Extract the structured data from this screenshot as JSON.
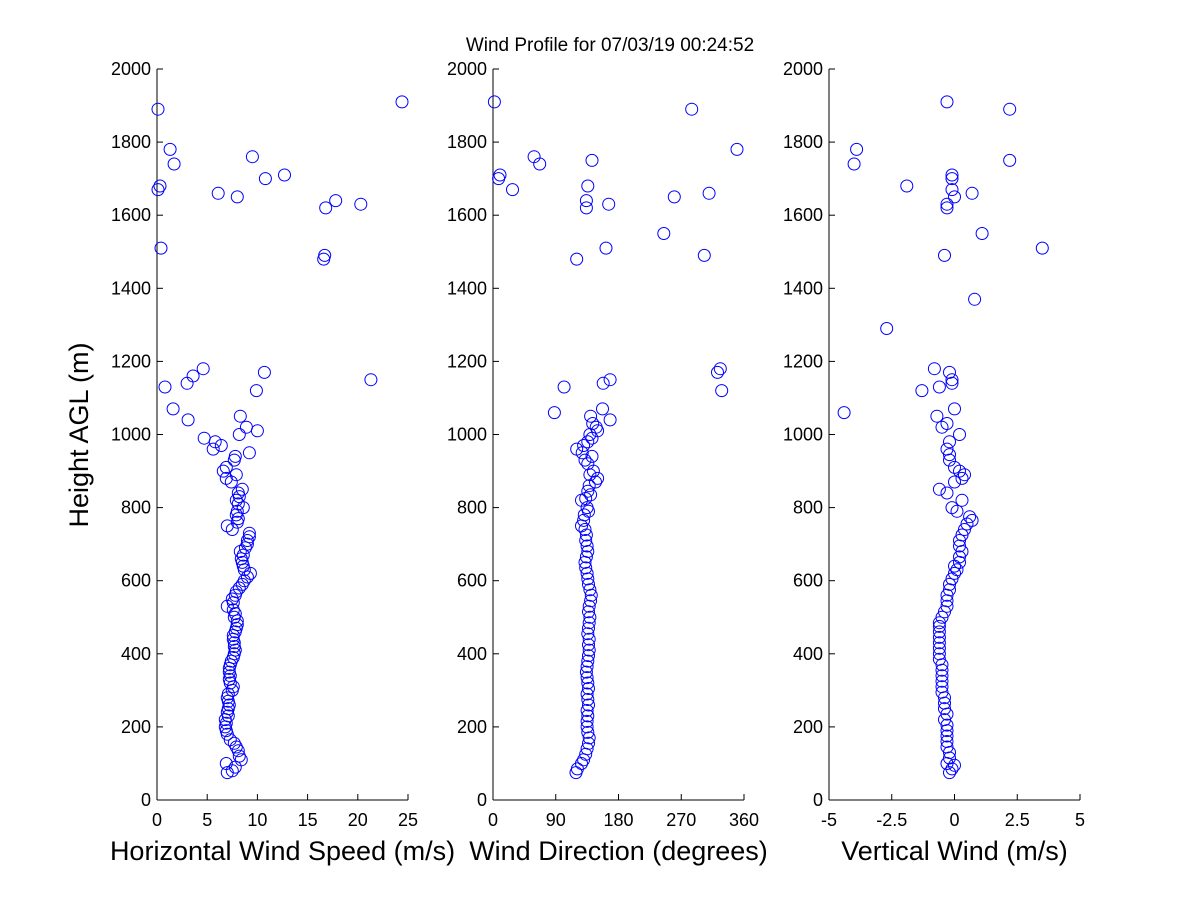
{
  "title": "Wind Profile for  07/03/19 00:24:52",
  "ylabel": "Height AGL (m)",
  "chart_data": [
    {
      "type": "scatter",
      "xlabel": "Horizontal Wind Speed (m/s)",
      "xlim": [
        0,
        25
      ],
      "xticks": [
        "0",
        "5",
        "10",
        "15",
        "20",
        "25"
      ],
      "xtick_values": [
        0,
        5,
        10,
        15,
        20,
        25
      ],
      "ylim": [
        0,
        2000
      ],
      "yticks": [
        "0",
        "200",
        "400",
        "600",
        "800",
        "1000",
        "1200",
        "1400",
        "1600",
        "1800",
        "2000"
      ],
      "grid": false,
      "marker_color": "#0000ff",
      "points": [
        [
          7.0,
          75
        ],
        [
          7.5,
          80
        ],
        [
          7.8,
          90
        ],
        [
          6.9,
          100
        ],
        [
          8.4,
          110
        ],
        [
          8.2,
          120
        ],
        [
          8.1,
          135
        ],
        [
          7.9,
          145
        ],
        [
          7.7,
          155
        ],
        [
          7.3,
          165
        ],
        [
          7.0,
          180
        ],
        [
          6.9,
          190
        ],
        [
          6.8,
          200
        ],
        [
          6.9,
          210
        ],
        [
          6.8,
          220
        ],
        [
          7.1,
          230
        ],
        [
          7.0,
          240
        ],
        [
          7.1,
          250
        ],
        [
          7.2,
          260
        ],
        [
          7.1,
          270
        ],
        [
          7.0,
          280
        ],
        [
          7.1,
          290
        ],
        [
          7.5,
          300
        ],
        [
          7.6,
          310
        ],
        [
          7.3,
          320
        ],
        [
          7.2,
          330
        ],
        [
          7.3,
          340
        ],
        [
          7.2,
          350
        ],
        [
          7.2,
          360
        ],
        [
          7.3,
          370
        ],
        [
          7.4,
          380
        ],
        [
          7.6,
          390
        ],
        [
          7.7,
          400
        ],
        [
          7.8,
          410
        ],
        [
          7.7,
          420
        ],
        [
          7.7,
          430
        ],
        [
          7.6,
          440
        ],
        [
          7.6,
          450
        ],
        [
          7.8,
          460
        ],
        [
          7.9,
          470
        ],
        [
          8.0,
          480
        ],
        [
          8.0,
          490
        ],
        [
          7.7,
          500
        ],
        [
          7.8,
          510
        ],
        [
          7.6,
          520
        ],
        [
          7.0,
          530
        ],
        [
          7.6,
          540
        ],
        [
          7.5,
          550
        ],
        [
          7.8,
          560
        ],
        [
          7.9,
          570
        ],
        [
          8.2,
          580
        ],
        [
          8.5,
          590
        ],
        [
          8.7,
          600
        ],
        [
          9.0,
          610
        ],
        [
          9.3,
          620
        ],
        [
          8.7,
          630
        ],
        [
          8.6,
          640
        ],
        [
          8.5,
          650
        ],
        [
          8.4,
          660
        ],
        [
          8.6,
          670
        ],
        [
          8.3,
          680
        ],
        [
          8.8,
          690
        ],
        [
          9.0,
          700
        ],
        [
          9.0,
          710
        ],
        [
          9.2,
          720
        ],
        [
          9.2,
          730
        ],
        [
          7.5,
          740
        ],
        [
          7.0,
          750
        ],
        [
          8.0,
          760
        ],
        [
          8.1,
          770
        ],
        [
          7.9,
          780
        ],
        [
          8.0,
          790
        ],
        [
          8.6,
          800
        ],
        [
          8.1,
          810
        ],
        [
          7.9,
          820
        ],
        [
          8.2,
          830
        ],
        [
          8.1,
          840
        ],
        [
          8.5,
          850
        ],
        [
          7.4,
          870
        ],
        [
          6.9,
          880
        ],
        [
          7.9,
          890
        ],
        [
          6.6,
          900
        ],
        [
          6.9,
          910
        ],
        [
          7.7,
          930
        ],
        [
          7.8,
          940
        ],
        [
          9.2,
          950
        ],
        [
          5.6,
          960
        ],
        [
          6.4,
          970
        ],
        [
          5.8,
          980
        ],
        [
          4.7,
          990
        ],
        [
          8.2,
          1000
        ],
        [
          10.0,
          1010
        ],
        [
          8.9,
          1020
        ],
        [
          3.1,
          1040
        ],
        [
          8.3,
          1050
        ],
        [
          1.6,
          1070
        ],
        [
          9.9,
          1120
        ],
        [
          0.8,
          1130
        ],
        [
          3.0,
          1140
        ],
        [
          21.3,
          1150
        ],
        [
          3.6,
          1160
        ],
        [
          10.7,
          1170
        ],
        [
          4.6,
          1180
        ],
        [
          16.6,
          1480
        ],
        [
          16.7,
          1490
        ],
        [
          0.4,
          1510
        ],
        [
          16.8,
          1620
        ],
        [
          20.3,
          1630
        ],
        [
          17.8,
          1640
        ],
        [
          8.0,
          1650
        ],
        [
          6.1,
          1660
        ],
        [
          0.1,
          1670
        ],
        [
          0.3,
          1680
        ],
        [
          12.7,
          1710
        ],
        [
          10.8,
          1700
        ],
        [
          1.7,
          1740
        ],
        [
          9.5,
          1760
        ],
        [
          1.3,
          1780
        ],
        [
          0.1,
          1890
        ],
        [
          24.4,
          1910
        ]
      ]
    },
    {
      "type": "scatter",
      "xlabel": "Wind Direction (degrees)",
      "xlim": [
        0,
        360
      ],
      "xticks": [
        "0",
        "90",
        "180",
        "270",
        "360"
      ],
      "xtick_values": [
        0,
        90,
        180,
        270,
        360
      ],
      "ylim": [
        0,
        2000
      ],
      "yticks": [
        "0",
        "200",
        "400",
        "600",
        "800",
        "1000",
        "1200",
        "1400",
        "1600",
        "1800",
        "2000"
      ],
      "grid": false,
      "marker_color": "#0000ff",
      "points": [
        [
          119,
          75
        ],
        [
          121,
          85
        ],
        [
          127,
          100
        ],
        [
          130,
          110
        ],
        [
          133,
          125
        ],
        [
          135,
          140
        ],
        [
          137,
          155
        ],
        [
          138,
          170
        ],
        [
          136,
          185
        ],
        [
          135,
          200
        ],
        [
          135,
          215
        ],
        [
          136,
          230
        ],
        [
          135,
          245
        ],
        [
          137,
          260
        ],
        [
          136,
          275
        ],
        [
          135,
          290
        ],
        [
          137,
          305
        ],
        [
          136,
          320
        ],
        [
          135,
          335
        ],
        [
          134,
          350
        ],
        [
          135,
          365
        ],
        [
          136,
          380
        ],
        [
          137,
          395
        ],
        [
          138,
          410
        ],
        [
          137,
          425
        ],
        [
          138,
          440
        ],
        [
          136,
          455
        ],
        [
          137,
          470
        ],
        [
          138,
          485
        ],
        [
          139,
          500
        ],
        [
          137,
          515
        ],
        [
          138,
          530
        ],
        [
          140,
          545
        ],
        [
          141,
          560
        ],
        [
          139,
          575
        ],
        [
          137,
          590
        ],
        [
          136,
          605
        ],
        [
          135,
          620
        ],
        [
          133,
          635
        ],
        [
          132,
          650
        ],
        [
          134,
          665
        ],
        [
          136,
          680
        ],
        [
          135,
          695
        ],
        [
          133,
          710
        ],
        [
          134,
          725
        ],
        [
          132,
          740
        ],
        [
          127,
          750
        ],
        [
          130,
          765
        ],
        [
          131,
          780
        ],
        [
          137,
          790
        ],
        [
          135,
          800
        ],
        [
          127,
          820
        ],
        [
          133,
          825
        ],
        [
          140,
          835
        ],
        [
          136,
          845
        ],
        [
          138,
          860
        ],
        [
          147,
          870
        ],
        [
          150,
          880
        ],
        [
          139,
          890
        ],
        [
          144,
          900
        ],
        [
          136,
          920
        ],
        [
          132,
          930
        ],
        [
          142,
          940
        ],
        [
          128,
          950
        ],
        [
          120,
          960
        ],
        [
          130,
          970
        ],
        [
          136,
          980
        ],
        [
          142,
          990
        ],
        [
          139,
          1000
        ],
        [
          150,
          1010
        ],
        [
          148,
          1020
        ],
        [
          143,
          1030
        ],
        [
          168,
          1040
        ],
        [
          140,
          1050
        ],
        [
          157,
          1070
        ],
        [
          88,
          1060
        ],
        [
          328,
          1120
        ],
        [
          102,
          1130
        ],
        [
          158,
          1140
        ],
        [
          168,
          1150
        ],
        [
          322,
          1170
        ],
        [
          326,
          1180
        ],
        [
          120,
          1480
        ],
        [
          303,
          1490
        ],
        [
          162,
          1510
        ],
        [
          245,
          1550
        ],
        [
          134,
          1620
        ],
        [
          134,
          1640
        ],
        [
          166,
          1630
        ],
        [
          260,
          1650
        ],
        [
          310,
          1660
        ],
        [
          136,
          1680
        ],
        [
          28,
          1670
        ],
        [
          8,
          1700
        ],
        [
          10,
          1710
        ],
        [
          67,
          1740
        ],
        [
          59,
          1760
        ],
        [
          142,
          1750
        ],
        [
          350,
          1780
        ],
        [
          285,
          1890
        ],
        [
          2,
          1910
        ]
      ]
    },
    {
      "type": "scatter",
      "xlabel": "Vertical Wind (m/s)",
      "xlim": [
        -5,
        5
      ],
      "xticks": [
        "-5",
        "-2.5",
        "0",
        "2.5",
        "5"
      ],
      "xtick_values": [
        -5,
        -2.5,
        0,
        2.5,
        5
      ],
      "ylim": [
        0,
        2000
      ],
      "yticks": [
        "0",
        "200",
        "400",
        "600",
        "800",
        "1000",
        "1200",
        "1400",
        "1600",
        "1800",
        "2000"
      ],
      "grid": false,
      "marker_color": "#0000ff",
      "points": [
        [
          -0.2,
          75
        ],
        [
          -0.1,
          85
        ],
        [
          0.0,
          95
        ],
        [
          -0.3,
          100
        ],
        [
          -0.2,
          115
        ],
        [
          -0.2,
          130
        ],
        [
          -0.3,
          145
        ],
        [
          -0.3,
          160
        ],
        [
          -0.3,
          175
        ],
        [
          -0.3,
          190
        ],
        [
          -0.3,
          205
        ],
        [
          -0.4,
          220
        ],
        [
          -0.3,
          235
        ],
        [
          -0.4,
          250
        ],
        [
          -0.4,
          265
        ],
        [
          -0.4,
          280
        ],
        [
          -0.5,
          295
        ],
        [
          -0.5,
          310
        ],
        [
          -0.5,
          325
        ],
        [
          -0.5,
          340
        ],
        [
          -0.5,
          355
        ],
        [
          -0.5,
          370
        ],
        [
          -0.6,
          385
        ],
        [
          -0.6,
          400
        ],
        [
          -0.6,
          415
        ],
        [
          -0.6,
          430
        ],
        [
          -0.6,
          445
        ],
        [
          -0.6,
          460
        ],
        [
          -0.6,
          475
        ],
        [
          -0.6,
          485
        ],
        [
          -0.5,
          500
        ],
        [
          -0.4,
          515
        ],
        [
          -0.3,
          530
        ],
        [
          -0.3,
          545
        ],
        [
          -0.3,
          560
        ],
        [
          -0.2,
          575
        ],
        [
          -0.2,
          590
        ],
        [
          -0.1,
          605
        ],
        [
          0.0,
          620
        ],
        [
          0.1,
          630
        ],
        [
          0.0,
          640
        ],
        [
          0.2,
          650
        ],
        [
          0.2,
          665
        ],
        [
          0.3,
          680
        ],
        [
          0.2,
          695
        ],
        [
          0.2,
          710
        ],
        [
          0.3,
          725
        ],
        [
          0.4,
          740
        ],
        [
          0.5,
          755
        ],
        [
          0.7,
          765
        ],
        [
          0.6,
          775
        ],
        [
          0.1,
          790
        ],
        [
          -0.1,
          800
        ],
        [
          0.3,
          820
        ],
        [
          -0.3,
          840
        ],
        [
          -0.6,
          850
        ],
        [
          0.0,
          870
        ],
        [
          0.3,
          880
        ],
        [
          0.4,
          890
        ],
        [
          0.2,
          900
        ],
        [
          0.0,
          910
        ],
        [
          -0.2,
          930
        ],
        [
          -0.2,
          945
        ],
        [
          -0.3,
          960
        ],
        [
          -0.2,
          980
        ],
        [
          0.2,
          1000
        ],
        [
          -0.5,
          1020
        ],
        [
          -0.3,
          1030
        ],
        [
          -0.7,
          1050
        ],
        [
          -4.4,
          1060
        ],
        [
          0.0,
          1070
        ],
        [
          -0.6,
          1130
        ],
        [
          -1.3,
          1120
        ],
        [
          -0.1,
          1140
        ],
        [
          -0.1,
          1150
        ],
        [
          -0.2,
          1170
        ],
        [
          -0.8,
          1180
        ],
        [
          -2.7,
          1290
        ],
        [
          0.8,
          1370
        ],
        [
          -0.4,
          1490
        ],
        [
          3.5,
          1510
        ],
        [
          1.1,
          1550
        ],
        [
          -0.3,
          1620
        ],
        [
          -0.3,
          1630
        ],
        [
          0.0,
          1650
        ],
        [
          0.7,
          1660
        ],
        [
          -1.9,
          1680
        ],
        [
          -0.1,
          1670
        ],
        [
          -0.1,
          1700
        ],
        [
          -0.1,
          1710
        ],
        [
          -4.0,
          1740
        ],
        [
          2.2,
          1750
        ],
        [
          -3.9,
          1780
        ],
        [
          2.2,
          1890
        ],
        [
          -0.3,
          1910
        ]
      ]
    }
  ]
}
